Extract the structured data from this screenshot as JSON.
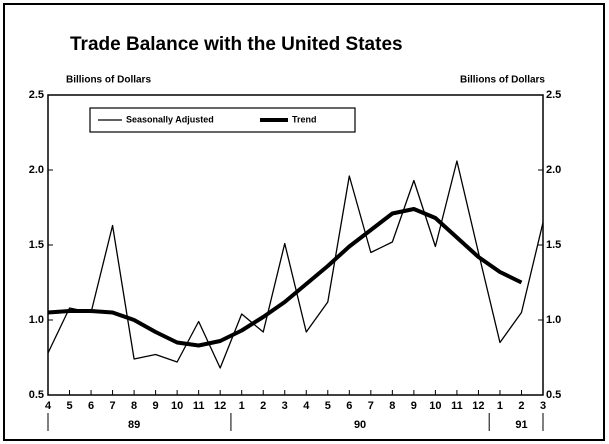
{
  "chart_data": {
    "type": "line",
    "title": "Trade Balance with the United States",
    "y_label": "Billions of Dollars",
    "y2_label": "Billions of Dollars",
    "categories": [
      "4",
      "5",
      "6",
      "7",
      "8",
      "9",
      "10",
      "11",
      "12",
      "1",
      "2",
      "3",
      "4",
      "5",
      "6",
      "7",
      "8",
      "9",
      "10",
      "11",
      "12",
      "1",
      "2",
      "3"
    ],
    "year_labels": [
      "89",
      "90",
      "91"
    ],
    "series": [
      {
        "name": "Seasonally Adjusted",
        "color": "#000000",
        "values": [
          0.78,
          1.08,
          1.05,
          1.63,
          0.74,
          0.77,
          0.72,
          0.99,
          0.68,
          1.04,
          0.92,
          1.51,
          0.92,
          1.12,
          1.96,
          1.45,
          1.52,
          1.93,
          1.49,
          2.06,
          1.45,
          0.85,
          1.05,
          1.65
        ]
      },
      {
        "name": "Trend",
        "color": "#000000",
        "values": [
          1.05,
          1.06,
          1.06,
          1.05,
          1.0,
          0.92,
          0.85,
          0.83,
          0.86,
          0.93,
          1.02,
          1.12,
          1.24,
          1.36,
          1.49,
          1.6,
          1.71,
          1.74,
          1.68,
          1.55,
          1.42,
          1.32,
          1.25,
          null
        ]
      }
    ],
    "ylim": [
      0.5,
      2.5
    ],
    "yticks": [
      0.5,
      {
        "value": 1,
        "label": "1.0"
      },
      1.5,
      {
        "value": 2,
        "label": "2.0"
      },
      2.5
    ],
    "legend": "upper left"
  }
}
